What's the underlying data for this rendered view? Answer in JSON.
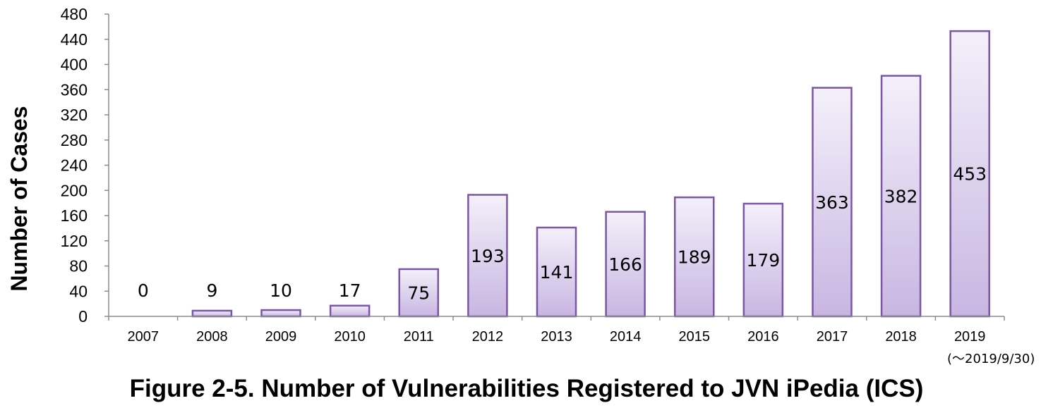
{
  "chart_data": {
    "type": "bar",
    "categories": [
      "2007",
      "2008",
      "2009",
      "2010",
      "2011",
      "2012",
      "2013",
      "2014",
      "2015",
      "2016",
      "2017",
      "2018",
      "2019"
    ],
    "category_sublabels": [
      "",
      "",
      "",
      "",
      "",
      "",
      "",
      "",
      "",
      "",
      "",
      "",
      "(〜2019/9/30)"
    ],
    "values": [
      0,
      9,
      10,
      17,
      75,
      193,
      141,
      166,
      189,
      179,
      363,
      382,
      453
    ],
    "ylabel": "Number of Cases",
    "ylim": [
      0,
      480
    ],
    "yticks": [
      0,
      40,
      80,
      120,
      160,
      200,
      240,
      280,
      320,
      360,
      400,
      440,
      480
    ],
    "grid": false,
    "colors": {
      "bar_fill_top": "#f4f0fa",
      "bar_fill_bottom": "#c8b6e2",
      "bar_stroke": "#7a56a4",
      "axis": "#8c8c8c"
    }
  },
  "caption": "Figure 2-5. Number of Vulnerabilities Registered to JVN iPedia (ICS)"
}
